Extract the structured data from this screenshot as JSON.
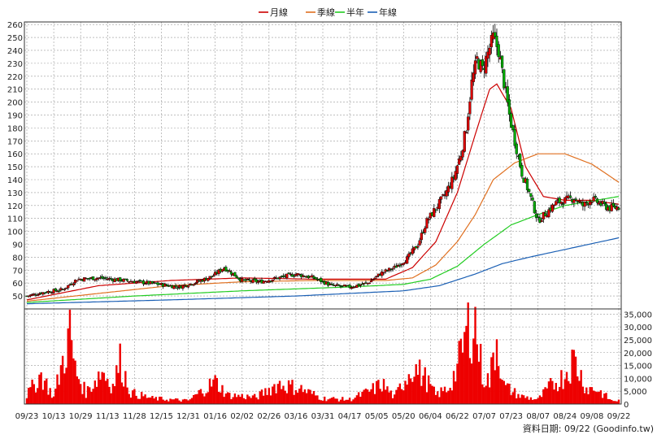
{
  "chart_data": {
    "type": "candlestick",
    "legend": {
      "placement": "top-center",
      "items": [
        {
          "label": "月線",
          "color": "#cc0000"
        },
        {
          "label": "季線",
          "color": "#e07020"
        },
        {
          "label": "半年",
          "color": "#22cc22"
        },
        {
          "label": "年線",
          "color": "#1a5fb4"
        }
      ]
    },
    "price_axis": {
      "ylim": [
        40,
        262
      ],
      "ticks": [
        50,
        60,
        70,
        80,
        90,
        100,
        110,
        120,
        130,
        140,
        150,
        160,
        170,
        180,
        190,
        200,
        210,
        220,
        230,
        240,
        250,
        260
      ],
      "grid": true
    },
    "volume_axis": {
      "ylim": [
        0,
        37000
      ],
      "ticks": [
        0,
        5000,
        10000,
        15000,
        20000,
        25000,
        30000,
        35000
      ],
      "tick_labels": [
        "0",
        "5,000",
        "10,000",
        "15,000",
        "20,000",
        "25,000",
        "30,000",
        "35,000"
      ],
      "grid": true
    },
    "x_ticks": [
      "09/23",
      "10/13",
      "10/29",
      "11/13",
      "11/28",
      "12/15",
      "12/31",
      "01/16",
      "02/02",
      "02/26",
      "03/16",
      "03/31",
      "04/17",
      "05/05",
      "05/20",
      "06/04",
      "06/22",
      "07/07",
      "07/23",
      "08/07",
      "08/24",
      "09/08",
      "09/22"
    ],
    "close_anchors": [
      [
        0,
        50
      ],
      [
        10,
        53
      ],
      [
        20,
        55
      ],
      [
        28,
        63
      ],
      [
        40,
        64
      ],
      [
        55,
        62
      ],
      [
        68,
        60
      ],
      [
        85,
        57
      ],
      [
        95,
        61
      ],
      [
        103,
        65
      ],
      [
        110,
        72
      ],
      [
        120,
        62
      ],
      [
        130,
        61
      ],
      [
        140,
        64
      ],
      [
        150,
        67
      ],
      [
        160,
        64
      ],
      [
        170,
        58
      ],
      [
        180,
        57
      ],
      [
        190,
        60
      ],
      [
        198,
        68
      ],
      [
        205,
        72
      ],
      [
        212,
        79
      ],
      [
        218,
        90
      ],
      [
        223,
        108
      ],
      [
        228,
        118
      ],
      [
        233,
        128
      ],
      [
        238,
        142
      ],
      [
        242,
        160
      ],
      [
        245,
        180
      ],
      [
        248,
        215
      ],
      [
        251,
        233
      ],
      [
        254,
        225
      ],
      [
        257,
        238
      ],
      [
        260,
        250
      ],
      [
        263,
        240
      ],
      [
        266,
        215
      ],
      [
        269,
        190
      ],
      [
        272,
        170
      ],
      [
        276,
        145
      ],
      [
        280,
        130
      ],
      [
        285,
        108
      ],
      [
        290,
        115
      ],
      [
        295,
        122
      ],
      [
        300,
        124
      ],
      [
        305,
        126
      ],
      [
        310,
        120
      ],
      [
        315,
        125
      ],
      [
        320,
        121
      ],
      [
        325,
        118
      ],
      [
        330,
        119
      ]
    ],
    "ma_anchors": {
      "month": [
        [
          0,
          47
        ],
        [
          40,
          58
        ],
        [
          80,
          62
        ],
        [
          120,
          64
        ],
        [
          160,
          63
        ],
        [
          200,
          63
        ],
        [
          215,
          72
        ],
        [
          228,
          92
        ],
        [
          240,
          130
        ],
        [
          250,
          175
        ],
        [
          258,
          210
        ],
        [
          262,
          214
        ],
        [
          270,
          195
        ],
        [
          278,
          150
        ],
        [
          288,
          127
        ],
        [
          300,
          124
        ],
        [
          315,
          124
        ],
        [
          330,
          121
        ]
      ],
      "quarter": [
        [
          0,
          46
        ],
        [
          40,
          52
        ],
        [
          80,
          58
        ],
        [
          120,
          61
        ],
        [
          160,
          62
        ],
        [
          200,
          62
        ],
        [
          215,
          64
        ],
        [
          228,
          74
        ],
        [
          240,
          92
        ],
        [
          250,
          113
        ],
        [
          260,
          140
        ],
        [
          272,
          153
        ],
        [
          285,
          160
        ],
        [
          300,
          160
        ],
        [
          315,
          152
        ],
        [
          330,
          138
        ]
      ],
      "half": [
        [
          0,
          45
        ],
        [
          60,
          50
        ],
        [
          120,
          54
        ],
        [
          180,
          57
        ],
        [
          210,
          59
        ],
        [
          225,
          63
        ],
        [
          240,
          73
        ],
        [
          255,
          90
        ],
        [
          270,
          105
        ],
        [
          285,
          113
        ],
        [
          300,
          120
        ],
        [
          330,
          127
        ]
      ],
      "year": [
        [
          0,
          44
        ],
        [
          80,
          47
        ],
        [
          150,
          50
        ],
        [
          210,
          54
        ],
        [
          230,
          58
        ],
        [
          250,
          67
        ],
        [
          265,
          75
        ],
        [
          280,
          80
        ],
        [
          300,
          86
        ],
        [
          330,
          95
        ]
      ]
    },
    "volume_anchors": [
      [
        0,
        4000
      ],
      [
        8,
        13000
      ],
      [
        15,
        3000
      ],
      [
        24,
        31500
      ],
      [
        27,
        15000
      ],
      [
        33,
        5000
      ],
      [
        42,
        15000
      ],
      [
        48,
        8000
      ],
      [
        52,
        19000
      ],
      [
        58,
        5000
      ],
      [
        70,
        2500
      ],
      [
        90,
        1500
      ],
      [
        105,
        10000
      ],
      [
        112,
        4000
      ],
      [
        128,
        3000
      ],
      [
        140,
        9000
      ],
      [
        152,
        7000
      ],
      [
        165,
        2500
      ],
      [
        180,
        2000
      ],
      [
        192,
        6000
      ],
      [
        198,
        9000
      ],
      [
        205,
        3000
      ],
      [
        215,
        17000
      ],
      [
        222,
        11500
      ],
      [
        228,
        4000
      ],
      [
        235,
        7000
      ],
      [
        240,
        16000
      ],
      [
        243,
        25000
      ],
      [
        246,
        34000
      ],
      [
        250,
        36000
      ],
      [
        254,
        13000
      ],
      [
        258,
        10000
      ],
      [
        262,
        30000
      ],
      [
        266,
        8000
      ],
      [
        275,
        3500
      ],
      [
        285,
        2000
      ],
      [
        292,
        8000
      ],
      [
        299,
        12000
      ],
      [
        305,
        20000
      ],
      [
        312,
        7000
      ],
      [
        318,
        6500
      ],
      [
        326,
        1500
      ],
      [
        330,
        1500
      ]
    ]
  },
  "source": {
    "label": "資料日期: 09/22  (Goodinfo.tw)"
  }
}
